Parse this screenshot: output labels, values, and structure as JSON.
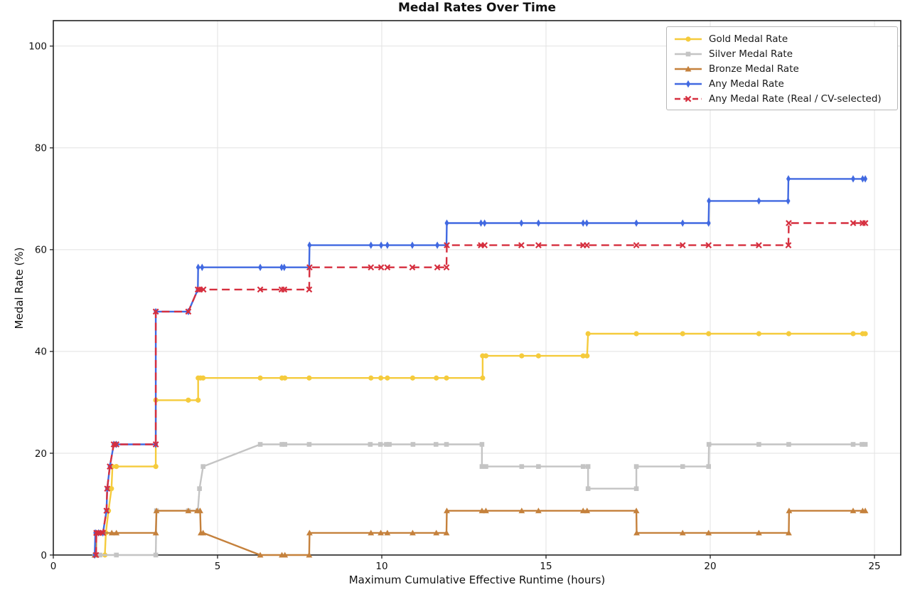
{
  "chart_data": {
    "type": "line",
    "title": "Medal Rates Over Time",
    "xlabel": "Maximum Cumulative Effective Runtime (hours)",
    "ylabel": "Medal Rate (%)",
    "xlim": [
      0,
      25.8
    ],
    "ylim": [
      0,
      105
    ],
    "x_ticks": [
      0,
      5,
      10,
      15,
      20,
      25
    ],
    "y_ticks": [
      0,
      20,
      40,
      60,
      80,
      100
    ],
    "grid": true,
    "legend_position": "upper right",
    "axis_color": "#222222",
    "grid_color": "#e2e2e2",
    "series": [
      {
        "name": "Gold Medal Rate",
        "color": "#F5CB3C",
        "marker": "circle",
        "dash": "solid",
        "points": [
          [
            1.26,
            0
          ],
          [
            1.57,
            0
          ],
          [
            1.6,
            4.35
          ],
          [
            1.68,
            8.7
          ],
          [
            1.77,
            13.04
          ],
          [
            1.8,
            17.39
          ],
          [
            1.92,
            17.39
          ],
          [
            3.12,
            17.39
          ],
          [
            3.12,
            30.43
          ],
          [
            4.11,
            30.43
          ],
          [
            4.41,
            30.43
          ],
          [
            4.41,
            34.78
          ],
          [
            4.48,
            34.78
          ],
          [
            4.56,
            34.78
          ],
          [
            6.3,
            34.78
          ],
          [
            6.96,
            34.78
          ],
          [
            7.05,
            34.78
          ],
          [
            7.79,
            34.78
          ],
          [
            9.67,
            34.78
          ],
          [
            9.97,
            34.78
          ],
          [
            10.17,
            34.78
          ],
          [
            10.94,
            34.78
          ],
          [
            11.66,
            34.78
          ],
          [
            11.97,
            34.78
          ],
          [
            13.07,
            34.78
          ],
          [
            13.07,
            39.13
          ],
          [
            13.17,
            39.13
          ],
          [
            14.26,
            39.13
          ],
          [
            14.77,
            39.13
          ],
          [
            16.13,
            39.13
          ],
          [
            16.25,
            39.13
          ],
          [
            16.28,
            43.48
          ],
          [
            17.75,
            43.48
          ],
          [
            19.16,
            43.48
          ],
          [
            19.95,
            43.48
          ],
          [
            21.48,
            43.48
          ],
          [
            22.39,
            43.48
          ],
          [
            24.35,
            43.48
          ],
          [
            24.64,
            43.48
          ],
          [
            24.72,
            43.48
          ]
        ]
      },
      {
        "name": "Silver Medal Rate",
        "color": "#C4C4C4",
        "marker": "square",
        "dash": "solid",
        "points": [
          [
            1.26,
            0
          ],
          [
            1.42,
            0
          ],
          [
            1.92,
            0
          ],
          [
            3.12,
            0
          ],
          [
            3.14,
            8.7
          ],
          [
            4.11,
            8.7
          ],
          [
            4.4,
            8.7
          ],
          [
            4.45,
            13.04
          ],
          [
            4.56,
            17.39
          ],
          [
            6.3,
            21.74
          ],
          [
            6.96,
            21.74
          ],
          [
            7.05,
            21.74
          ],
          [
            7.79,
            21.74
          ],
          [
            9.65,
            21.74
          ],
          [
            9.96,
            21.74
          ],
          [
            10.14,
            21.74
          ],
          [
            10.23,
            21.74
          ],
          [
            10.95,
            21.74
          ],
          [
            11.65,
            21.74
          ],
          [
            11.97,
            21.74
          ],
          [
            13.05,
            21.74
          ],
          [
            13.05,
            17.39
          ],
          [
            13.17,
            17.39
          ],
          [
            14.26,
            17.39
          ],
          [
            14.77,
            17.39
          ],
          [
            16.13,
            17.39
          ],
          [
            16.28,
            17.39
          ],
          [
            16.28,
            13.04
          ],
          [
            17.75,
            13.04
          ],
          [
            17.75,
            17.39
          ],
          [
            19.16,
            17.39
          ],
          [
            19.95,
            17.39
          ],
          [
            19.96,
            21.74
          ],
          [
            21.48,
            21.74
          ],
          [
            22.39,
            21.74
          ],
          [
            24.35,
            21.74
          ],
          [
            24.62,
            21.74
          ],
          [
            24.72,
            21.74
          ]
        ]
      },
      {
        "name": "Bronze Medal Rate",
        "color": "#C5813C",
        "marker": "triangle",
        "dash": "solid",
        "points": [
          [
            1.26,
            0
          ],
          [
            1.3,
            0
          ],
          [
            1.31,
            4.35
          ],
          [
            1.42,
            4.35
          ],
          [
            1.78,
            4.35
          ],
          [
            1.92,
            4.35
          ],
          [
            3.12,
            4.35
          ],
          [
            3.14,
            8.7
          ],
          [
            4.11,
            8.7
          ],
          [
            4.38,
            8.7
          ],
          [
            4.47,
            8.7
          ],
          [
            4.49,
            4.35
          ],
          [
            4.56,
            4.35
          ],
          [
            6.3,
            0
          ],
          [
            6.96,
            0
          ],
          [
            7.05,
            0
          ],
          [
            7.79,
            0
          ],
          [
            7.8,
            4.35
          ],
          [
            9.67,
            4.35
          ],
          [
            9.97,
            4.35
          ],
          [
            10.17,
            4.35
          ],
          [
            10.94,
            4.35
          ],
          [
            11.66,
            4.35
          ],
          [
            11.97,
            4.35
          ],
          [
            11.98,
            8.7
          ],
          [
            13.05,
            8.7
          ],
          [
            13.17,
            8.7
          ],
          [
            14.26,
            8.7
          ],
          [
            14.77,
            8.7
          ],
          [
            16.13,
            8.7
          ],
          [
            16.25,
            8.7
          ],
          [
            17.75,
            8.7
          ],
          [
            17.76,
            4.35
          ],
          [
            19.16,
            4.35
          ],
          [
            19.95,
            4.35
          ],
          [
            21.48,
            4.35
          ],
          [
            22.39,
            4.35
          ],
          [
            22.4,
            8.7
          ],
          [
            24.35,
            8.7
          ],
          [
            24.64,
            8.7
          ],
          [
            24.72,
            8.7
          ]
        ]
      },
      {
        "name": "Any Medal Rate",
        "color": "#4169E1",
        "marker": "diamond",
        "dash": "solid",
        "points": [
          [
            1.26,
            0
          ],
          [
            1.28,
            4.35
          ],
          [
            1.38,
            4.35
          ],
          [
            1.51,
            4.35
          ],
          [
            1.62,
            8.7
          ],
          [
            1.64,
            13.04
          ],
          [
            1.72,
            17.39
          ],
          [
            1.84,
            21.74
          ],
          [
            1.92,
            21.74
          ],
          [
            3.12,
            21.74
          ],
          [
            3.12,
            47.83
          ],
          [
            4.11,
            47.83
          ],
          [
            4.4,
            52.17
          ],
          [
            4.41,
            56.52
          ],
          [
            4.53,
            56.52
          ],
          [
            6.3,
            56.52
          ],
          [
            6.95,
            56.52
          ],
          [
            7.03,
            56.52
          ],
          [
            7.79,
            56.52
          ],
          [
            7.8,
            60.87
          ],
          [
            9.67,
            60.87
          ],
          [
            9.98,
            60.87
          ],
          [
            10.17,
            60.87
          ],
          [
            10.93,
            60.87
          ],
          [
            11.69,
            60.87
          ],
          [
            11.97,
            60.87
          ],
          [
            11.98,
            65.22
          ],
          [
            13.02,
            65.22
          ],
          [
            13.13,
            65.22
          ],
          [
            14.25,
            65.22
          ],
          [
            14.77,
            65.22
          ],
          [
            16.13,
            65.22
          ],
          [
            16.24,
            65.22
          ],
          [
            17.75,
            65.22
          ],
          [
            19.16,
            65.22
          ],
          [
            19.95,
            65.22
          ],
          [
            19.96,
            69.57
          ],
          [
            21.48,
            69.57
          ],
          [
            22.37,
            69.57
          ],
          [
            22.38,
            73.91
          ],
          [
            24.35,
            73.91
          ],
          [
            24.64,
            73.91
          ],
          [
            24.72,
            73.91
          ]
        ]
      },
      {
        "name": "Any Medal Rate (Real / CV-selected)",
        "color": "#D62F3F",
        "marker": "x",
        "dash": "dashed",
        "points": [
          [
            1.3,
            0
          ],
          [
            1.31,
            4.35
          ],
          [
            1.38,
            4.35
          ],
          [
            1.51,
            4.35
          ],
          [
            1.62,
            8.7
          ],
          [
            1.64,
            13.04
          ],
          [
            1.72,
            17.39
          ],
          [
            1.84,
            21.74
          ],
          [
            1.92,
            21.74
          ],
          [
            3.12,
            21.74
          ],
          [
            3.12,
            47.83
          ],
          [
            4.11,
            47.83
          ],
          [
            4.4,
            52.17
          ],
          [
            4.46,
            52.17
          ],
          [
            4.57,
            52.17
          ],
          [
            6.3,
            52.17
          ],
          [
            6.95,
            52.17
          ],
          [
            7.03,
            52.17
          ],
          [
            7.79,
            52.17
          ],
          [
            7.8,
            56.52
          ],
          [
            9.67,
            56.52
          ],
          [
            9.98,
            56.52
          ],
          [
            10.17,
            56.52
          ],
          [
            10.93,
            56.52
          ],
          [
            11.69,
            56.52
          ],
          [
            11.97,
            56.52
          ],
          [
            11.98,
            60.87
          ],
          [
            13.02,
            60.87
          ],
          [
            13.13,
            60.87
          ],
          [
            14.25,
            60.87
          ],
          [
            14.77,
            60.87
          ],
          [
            16.13,
            60.87
          ],
          [
            16.24,
            60.87
          ],
          [
            17.75,
            60.87
          ],
          [
            19.16,
            60.87
          ],
          [
            19.95,
            60.87
          ],
          [
            21.48,
            60.87
          ],
          [
            22.38,
            60.87
          ],
          [
            22.39,
            65.22
          ],
          [
            24.35,
            65.22
          ],
          [
            24.64,
            65.22
          ],
          [
            24.72,
            65.22
          ]
        ]
      }
    ]
  }
}
